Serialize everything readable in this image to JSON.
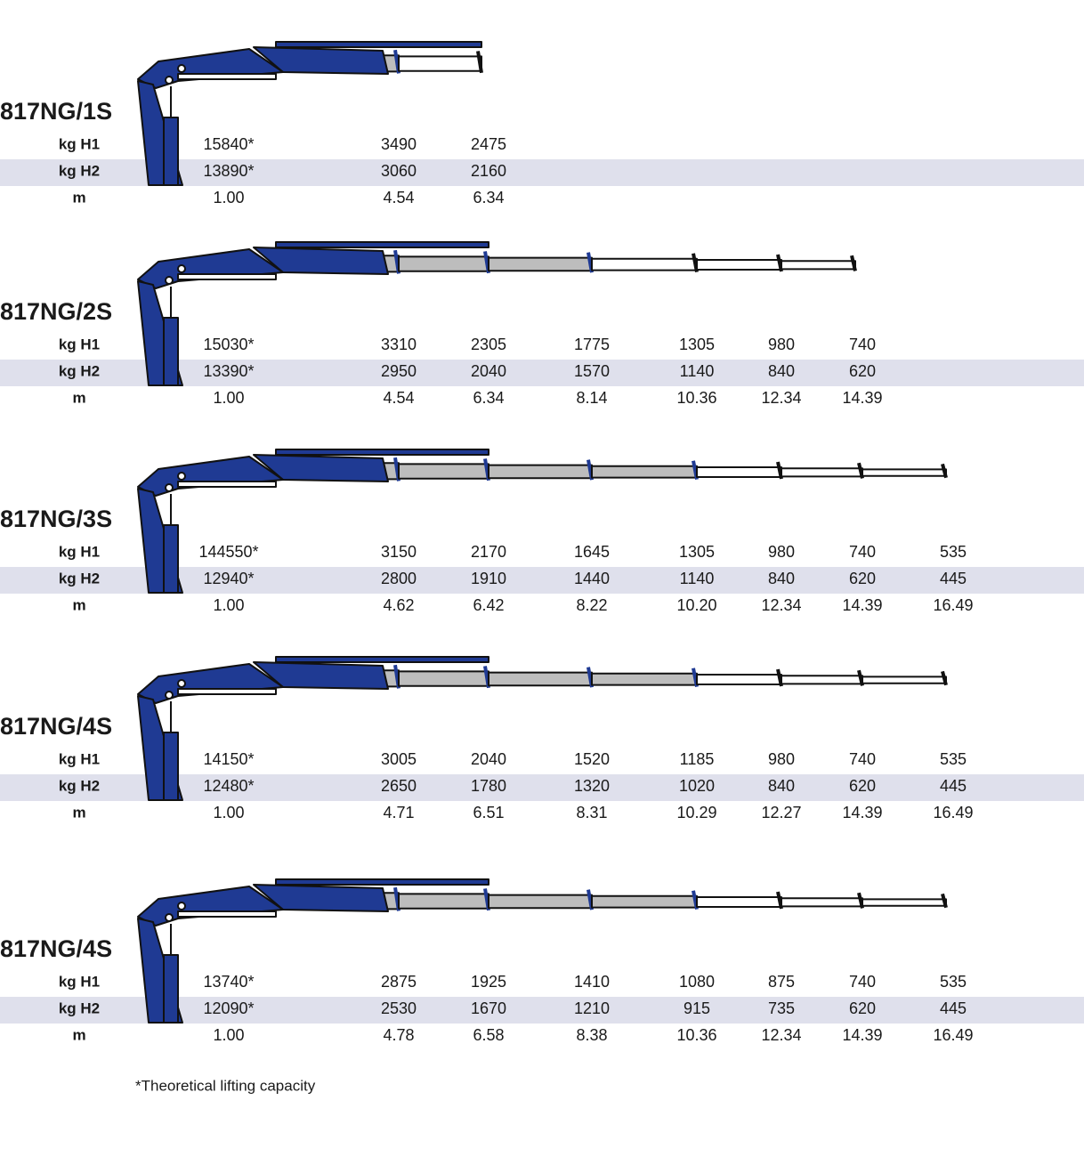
{
  "sections": [
    {
      "title": "817NG/1S",
      "rows": [
        {
          "label": "kg H1",
          "values": [
            "15840*",
            "3490",
            "2475"
          ]
        },
        {
          "label": "kg H2",
          "values": [
            "13890*",
            "3060",
            "2160"
          ]
        },
        {
          "label": "m",
          "values": [
            "1.00",
            "4.54",
            "6.34"
          ]
        }
      ]
    },
    {
      "title": "817NG/2S",
      "rows": [
        {
          "label": "kg H1",
          "values": [
            "15030*",
            "3310",
            "2305",
            "1775",
            "1305",
            "980",
            "740"
          ]
        },
        {
          "label": "kg H2",
          "values": [
            "13390*",
            "2950",
            "2040",
            "1570",
            "1140",
            "840",
            "620"
          ]
        },
        {
          "label": "m",
          "values": [
            "1.00",
            "4.54",
            "6.34",
            "8.14",
            "10.36",
            "12.34",
            "14.39"
          ]
        }
      ]
    },
    {
      "title": "817NG/3S",
      "rows": [
        {
          "label": "kg H1",
          "values": [
            "144550*",
            "3150",
            "2170",
            "1645",
            "1305",
            "980",
            "740",
            "535"
          ]
        },
        {
          "label": "kg H2",
          "values": [
            "12940*",
            "2800",
            "1910",
            "1440",
            "1140",
            "840",
            "620",
            "445"
          ]
        },
        {
          "label": "m",
          "values": [
            "1.00",
            "4.62",
            "6.42",
            "8.22",
            "10.20",
            "12.34",
            "14.39",
            "16.49"
          ]
        }
      ]
    },
    {
      "title": "817NG/4S",
      "rows": [
        {
          "label": "kg H1",
          "values": [
            "14150*",
            "3005",
            "2040",
            "1520",
            "1185",
            "980",
            "740",
            "535"
          ]
        },
        {
          "label": "kg H2",
          "values": [
            "12480*",
            "2650",
            "1780",
            "1320",
            "1020",
            "840",
            "620",
            "445"
          ]
        },
        {
          "label": "m",
          "values": [
            "1.00",
            "4.71",
            "6.51",
            "8.31",
            "10.29",
            "12.27",
            "14.39",
            "16.49"
          ]
        }
      ]
    },
    {
      "title": "817NG/4S",
      "rows": [
        {
          "label": "kg H1",
          "values": [
            "13740*",
            "2875",
            "1925",
            "1410",
            "1080",
            "875",
            "740",
            "535"
          ]
        },
        {
          "label": "kg H2",
          "values": [
            "12090*",
            "2530",
            "1670",
            "1210",
            "915",
            "735",
            "620",
            "445"
          ]
        },
        {
          "label": "m",
          "values": [
            "1.00",
            "4.78",
            "6.58",
            "8.38",
            "10.36",
            "12.34",
            "14.39",
            "16.49"
          ]
        }
      ]
    }
  ],
  "footnote": "*Theoretical lifting capacity"
}
